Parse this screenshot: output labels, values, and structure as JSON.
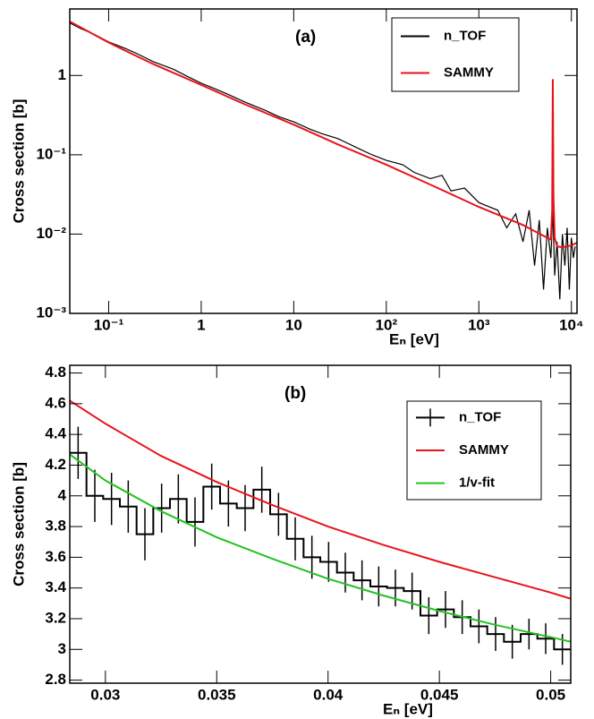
{
  "chart_data": [
    {
      "type": "line",
      "annotation": "(a)",
      "xlabel": "Eₙ  [eV]",
      "ylabel": "Cross section  [b]",
      "log_x": true,
      "log_y": true,
      "legend": "top right",
      "xlim": [
        0.038,
        11500
      ],
      "ylim": [
        0.001,
        6.9
      ],
      "xticks": [
        {
          "value": 0.1,
          "label": "10⁻¹"
        },
        1,
        10,
        {
          "value": 100,
          "label": "10²"
        },
        {
          "value": 1000,
          "label": "10³"
        },
        {
          "value": 10000,
          "label": "10⁴"
        }
      ],
      "yticks": [
        {
          "value": 0.001,
          "label": "10⁻³"
        },
        {
          "value": 0.01,
          "label": "10⁻²"
        },
        {
          "value": 0.1,
          "label": "10⁻¹"
        },
        1
      ],
      "series": [
        {
          "name": "n_TOF",
          "color": "#000000",
          "x": [
            0.038,
            0.05,
            0.07,
            0.1,
            0.15,
            0.2,
            0.3,
            0.5,
            0.7,
            1,
            1.5,
            2,
            3,
            5,
            7,
            10,
            15,
            20,
            30,
            50,
            70,
            100,
            150,
            200,
            300,
            400,
            500,
            700,
            1000,
            1300,
            1600,
            2000,
            2500,
            3000,
            3500,
            4000,
            4500,
            5000,
            5500,
            6000,
            6300,
            6600,
            7000,
            7500,
            8000,
            8500,
            9000,
            9500,
            10000,
            10500,
            11000
          ],
          "values": [
            4.6,
            3.9,
            3.3,
            2.65,
            2.2,
            1.9,
            1.5,
            1.2,
            0.98,
            0.8,
            0.66,
            0.57,
            0.46,
            0.36,
            0.3,
            0.26,
            0.21,
            0.185,
            0.16,
            0.12,
            0.1,
            0.085,
            0.075,
            0.06,
            0.05,
            0.055,
            0.035,
            0.038,
            0.025,
            0.022,
            0.02,
            0.012,
            0.018,
            0.008,
            0.02,
            0.004,
            0.015,
            0.002,
            0.012,
            0.005,
            0.02,
            0.003,
            0.008,
            0.0015,
            0.01,
            0.004,
            0.012,
            0.002,
            0.009,
            0.005,
            0.007
          ]
        },
        {
          "name": "SAMMY",
          "color": "#e8141c",
          "x": [
            0.038,
            0.1,
            0.3,
            1,
            3,
            10,
            30,
            100,
            300,
            1000,
            3000,
            5000,
            6000,
            6200,
            6300,
            6400,
            6600,
            7000,
            8000,
            10000,
            11500
          ],
          "values": [
            4.8,
            2.6,
            1.4,
            0.76,
            0.43,
            0.24,
            0.135,
            0.075,
            0.042,
            0.022,
            0.013,
            0.0095,
            0.0085,
            0.02,
            0.9,
            0.03,
            0.009,
            0.007,
            0.0068,
            0.0072,
            0.0078
          ]
        }
      ]
    },
    {
      "type": "line",
      "annotation": "(b)",
      "xlabel": "Eₙ  [eV]",
      "ylabel": "Cross section  [b]",
      "legend": "top right",
      "xlim": [
        0.0284,
        0.0509
      ],
      "ylim": [
        2.78,
        4.85
      ],
      "xticks": [
        0.03,
        0.035,
        0.04,
        0.045,
        0.05
      ],
      "yticks": [
        2.8,
        3,
        3.2,
        3.4,
        3.6,
        3.8,
        4,
        4.2,
        4.4,
        4.6,
        4.8
      ],
      "series": [
        {
          "name": "n_TOF",
          "color": "#000000",
          "bins": [
            0.0284,
            0.02915,
            0.0299,
            0.03065,
            0.0314,
            0.03215,
            0.0329,
            0.03365,
            0.0344,
            0.03515,
            0.0359,
            0.03665,
            0.0374,
            0.03815,
            0.0389,
            0.03965,
            0.0404,
            0.04115,
            0.0419,
            0.04265,
            0.0434,
            0.04415,
            0.0449,
            0.04565,
            0.0464,
            0.04715,
            0.0479,
            0.04865,
            0.0494,
            0.05015,
            0.0509
          ],
          "values": [
            4.28,
            4.0,
            3.98,
            3.93,
            3.75,
            3.92,
            3.98,
            3.83,
            4.06,
            3.95,
            3.92,
            4.04,
            3.88,
            3.72,
            3.6,
            3.57,
            3.5,
            3.45,
            3.41,
            3.4,
            3.38,
            3.22,
            3.26,
            3.21,
            3.15,
            3.1,
            3.05,
            3.1,
            3.07,
            3.0
          ],
          "errors": [
            0.17,
            0.17,
            0.17,
            0.17,
            0.17,
            0.16,
            0.16,
            0.16,
            0.15,
            0.15,
            0.15,
            0.15,
            0.14,
            0.14,
            0.14,
            0.13,
            0.13,
            0.13,
            0.13,
            0.12,
            0.12,
            0.12,
            0.12,
            0.11,
            0.11,
            0.11,
            0.11,
            0.1,
            0.1,
            0.1
          ]
        },
        {
          "name": "SAMMY",
          "color": "#e8141c",
          "x": [
            0.0284,
            0.03,
            0.0325,
            0.035,
            0.0375,
            0.04,
            0.0425,
            0.045,
            0.0475,
            0.05,
            0.0509
          ],
          "values": [
            4.62,
            4.47,
            4.26,
            4.09,
            3.94,
            3.8,
            3.68,
            3.57,
            3.47,
            3.37,
            3.33
          ]
        },
        {
          "name": "1/v-fit",
          "color": "#22c41e",
          "x": [
            0.0284,
            0.03,
            0.0325,
            0.035,
            0.0375,
            0.04,
            0.0425,
            0.045,
            0.0475,
            0.05,
            0.0509
          ],
          "values": [
            4.27,
            4.1,
            3.9,
            3.73,
            3.59,
            3.46,
            3.35,
            3.25,
            3.16,
            3.08,
            3.05
          ]
        }
      ]
    }
  ]
}
